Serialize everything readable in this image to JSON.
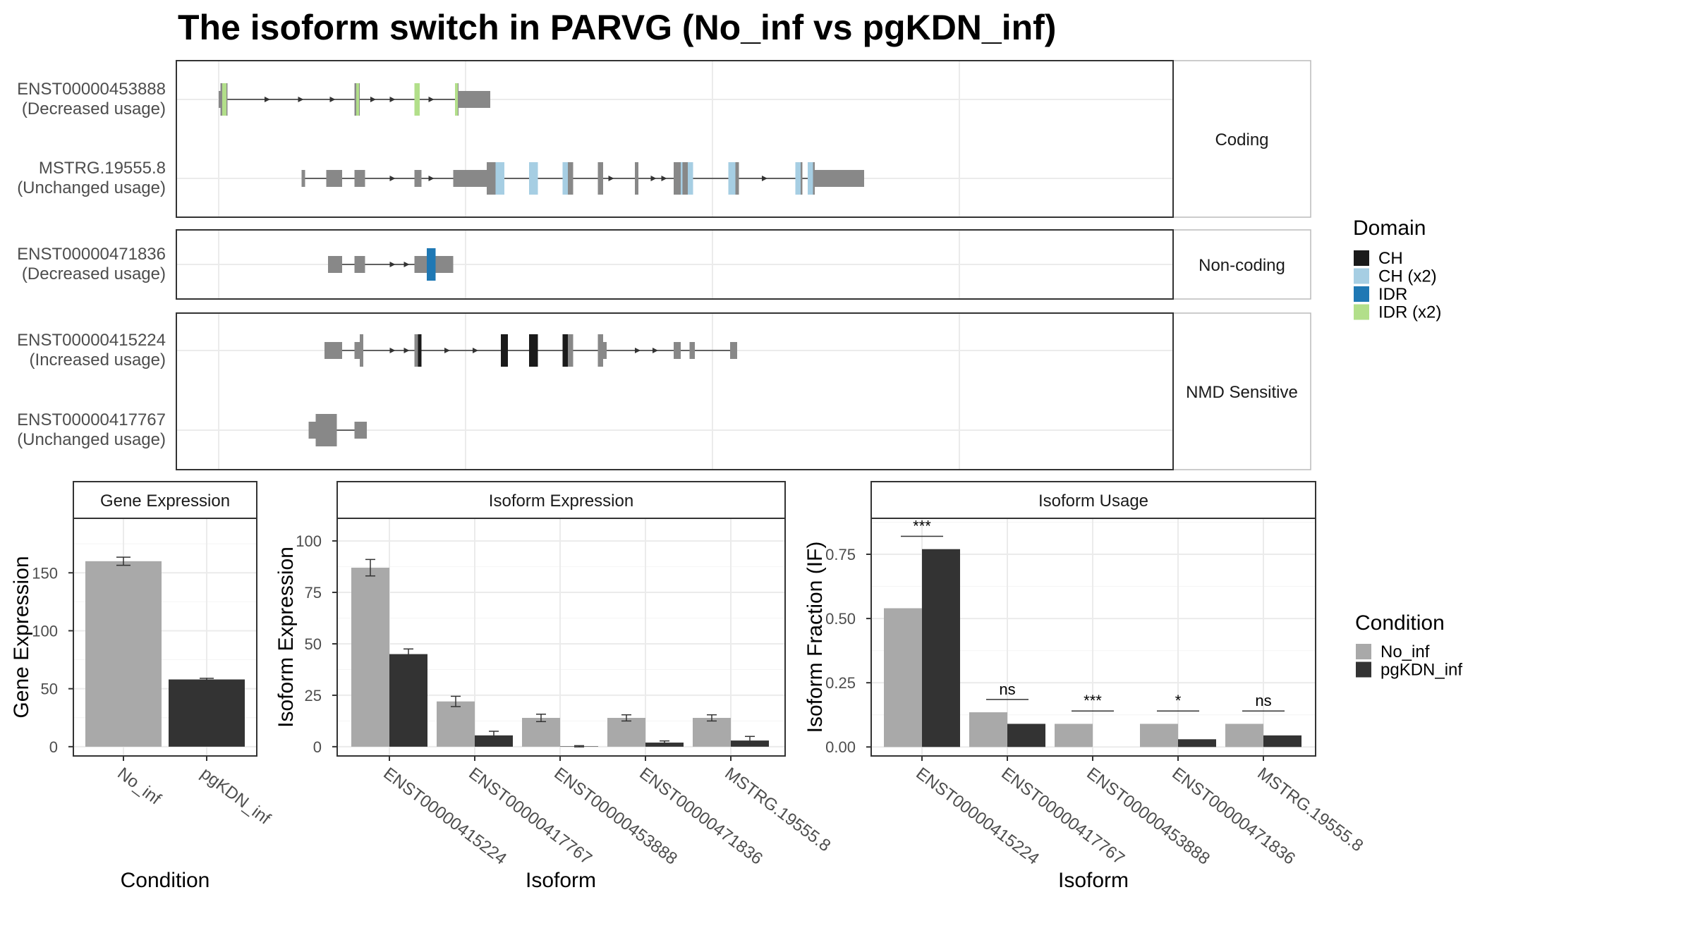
{
  "chart_data": {
    "title": "The isoform switch in PARVG (No_inf vs pgKDN_inf)",
    "structure": {
      "type": "transcript-structure",
      "groups": [
        {
          "name": "Coding",
          "transcripts": [
            {
              "id": "ENST00000453888",
              "usage": "(Decreased usage)",
              "exons": [
                [
                  0,
                  5,
                  "utr"
                ],
                [
                  5,
                  25,
                  "cds"
                ],
                [
                  385,
                  400,
                  "cds"
                ],
                [
                  555,
                  570,
                  "cds"
                ],
                [
                  670,
                  680,
                  "cds"
                ],
                [
                  680,
                  770,
                  "utr"
                ]
              ],
              "domains": [
                [
                  10,
                  22,
                  "IDR (x2)"
                ],
                [
                  390,
                  398,
                  "IDR (x2)"
                ],
                [
                  555,
                  570,
                  "IDR (x2)"
                ],
                [
                  670,
                  678,
                  "IDR (x2)"
                ]
              ],
              "arrows": [
                140,
                235,
                325,
                440,
                495,
                605
              ]
            },
            {
              "id": "MSTRG.19555.8",
              "usage": "(Unchanged usage)",
              "exons": [
                [
                  235,
                  245,
                  "utr"
                ],
                [
                  305,
                  350,
                  "utr"
                ],
                [
                  385,
                  415,
                  "utr"
                ],
                [
                  555,
                  575,
                  "utr"
                ],
                [
                  665,
                  760,
                  "utr"
                ],
                [
                  760,
                  785,
                  "cds"
                ],
                [
                  785,
                  810,
                  "cds"
                ],
                [
                  880,
                  905,
                  "cds"
                ],
                [
                  975,
                  1005,
                  "cds"
                ],
                [
                  1075,
                  1090,
                  "cds"
                ],
                [
                  1180,
                  1190,
                  "cds"
                ],
                [
                  1290,
                  1310,
                  "cds"
                ],
                [
                  1310,
                  1340,
                  "cds"
                ],
                [
                  1455,
                  1475,
                  "cds"
                ],
                [
                  1635,
                  1655,
                  "cds"
                ],
                [
                  1670,
                  1690,
                  "cds"
                ],
                [
                  1690,
                  1830,
                  "utr"
                ]
              ],
              "domains": [
                [
                  785,
                  810,
                  "CH (x2)"
                ],
                [
                  880,
                  905,
                  "CH (x2)"
                ],
                [
                  975,
                  990,
                  "CH (x2)"
                ],
                [
                  1310,
                  1315,
                  "CH (x2)"
                ],
                [
                  1330,
                  1345,
                  "CH (x2)"
                ],
                [
                  1445,
                  1465,
                  "CH (x2)"
                ],
                [
                  1635,
                  1650,
                  "CH (x2)"
                ],
                [
                  1670,
                  1685,
                  "CH (x2)"
                ]
              ],
              "arrows": [
                495,
                605,
                1115,
                1235,
                1265,
                1550
              ]
            }
          ]
        },
        {
          "name": "Non-coding",
          "transcripts": [
            {
              "id": "ENST00000471836",
              "usage": "(Decreased usage)",
              "exons": [
                [
                  310,
                  350,
                  "utr"
                ],
                [
                  385,
                  415,
                  "utr"
                ],
                [
                  555,
                  590,
                  "utr"
                ],
                [
                  590,
                  615,
                  "utr"
                ],
                [
                  615,
                  665,
                  "utr"
                ]
              ],
              "domains": [
                [
                  590,
                  615,
                  "IDR"
                ]
              ],
              "arrows": [
                495,
                535
              ]
            }
          ]
        },
        {
          "name": "NMD Sensitive",
          "transcripts": [
            {
              "id": "ENST00000415224",
              "usage": "(Increased usage)",
              "exons": [
                [
                  300,
                  350,
                  "utr"
                ],
                [
                  385,
                  400,
                  "utr"
                ],
                [
                  400,
                  410,
                  "cds"
                ],
                [
                  555,
                  575,
                  "cds"
                ],
                [
                  800,
                  820,
                  "cds"
                ],
                [
                  880,
                  905,
                  "cds"
                ],
                [
                  975,
                  1005,
                  "cds"
                ],
                [
                  1075,
                  1090,
                  "cds"
                ],
                [
                  1090,
                  1100,
                  "utr"
                ],
                [
                  1290,
                  1310,
                  "utr"
                ],
                [
                  1335,
                  1350,
                  "utr"
                ],
                [
                  1450,
                  1470,
                  "utr"
                ]
              ],
              "domains": [
                [
                  565,
                  575,
                  "CH"
                ],
                [
                  800,
                  820,
                  "CH"
                ],
                [
                  880,
                  905,
                  "CH"
                ],
                [
                  975,
                  990,
                  "CH"
                ]
              ],
              "arrows": [
                495,
                535,
                650,
                730,
                1190,
                1240
              ]
            },
            {
              "id": "ENST00000417767",
              "usage": "(Unchanged usage)",
              "exons": [
                [
                  255,
                  315,
                  "utr"
                ],
                [
                  275,
                  335,
                  "cds"
                ],
                [
                  385,
                  420,
                  "utr"
                ]
              ],
              "domains": [],
              "arrows": []
            }
          ]
        }
      ]
    },
    "legend_domain": {
      "title": "Domain",
      "items": [
        {
          "label": "CH",
          "color": "#1a1a1a"
        },
        {
          "label": "CH (x2)",
          "color": "#a6cee3"
        },
        {
          "label": "IDR",
          "color": "#1f78b4"
        },
        {
          "label": "IDR (x2)",
          "color": "#b2df8a"
        }
      ]
    },
    "legend_condition": {
      "title": "Condition",
      "items": [
        {
          "label": "No_inf",
          "color": "#a9a9a9"
        },
        {
          "label": "pgKDN_inf",
          "color": "#333333"
        }
      ]
    },
    "panels": [
      {
        "type": "bar",
        "strip": "Gene Expression",
        "xlabel": "Condition",
        "ylabel": "Gene Expression",
        "ylim": [
          -8,
          197
        ],
        "yticks": [
          0,
          50,
          100,
          150
        ],
        "categories": [
          "No_inf",
          "pgKDN_inf"
        ],
        "grouped": false,
        "values": [
          160,
          58
        ],
        "errors": [
          3.5,
          1
        ],
        "colors": [
          "#a9a9a9",
          "#333333"
        ]
      },
      {
        "type": "bar",
        "strip": "Isoform Expression",
        "xlabel": "Isoform",
        "ylabel": "Isoform Expression",
        "ylim": [
          -4.5,
          111
        ],
        "yticks": [
          0,
          25,
          50,
          75,
          100
        ],
        "categories": [
          "ENST00000415224",
          "ENST00000417767",
          "ENST00000453888",
          "ENST00000471836",
          "MSTRG.19555.8"
        ],
        "grouped": true,
        "series": [
          {
            "name": "No_inf",
            "values": [
              87,
              22,
              14,
              14,
              14
            ],
            "errors": [
              4,
              2.5,
              1.8,
              1.5,
              1.5
            ]
          },
          {
            "name": "pgKDN_inf",
            "values": [
              45,
              5.5,
              0.2,
              2,
              3
            ],
            "errors": [
              2.5,
              2,
              0.3,
              0.8,
              2
            ]
          }
        ]
      },
      {
        "type": "bar",
        "strip": "Isoform Usage",
        "xlabel": "Isoform",
        "ylabel": "Isoform Fraction (IF)",
        "ylim": [
          -0.035,
          0.89
        ],
        "yticks": [
          0.0,
          0.25,
          0.5,
          0.75
        ],
        "categories": [
          "ENST00000415224",
          "ENST00000417767",
          "ENST00000453888",
          "ENST00000471836",
          "MSTRG.19555.8"
        ],
        "grouped": true,
        "series": [
          {
            "name": "No_inf",
            "values": [
              0.54,
              0.135,
              0.09,
              0.09,
              0.09
            ]
          },
          {
            "name": "pgKDN_inf",
            "values": [
              0.77,
              0.09,
              0.0,
              0.03,
              0.045
            ]
          }
        ],
        "significance": [
          "***",
          "ns",
          "***",
          "*",
          "ns"
        ]
      }
    ]
  }
}
